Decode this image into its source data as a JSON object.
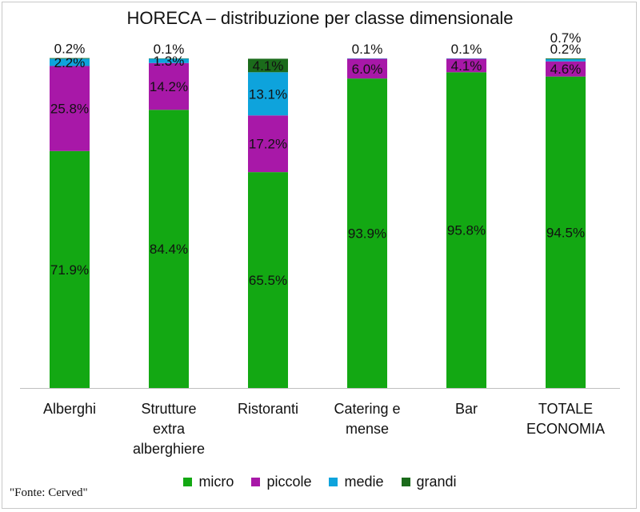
{
  "chart_data": {
    "type": "bar",
    "stacked": true,
    "title": "HORECA – distribuzione per classe dimensionale",
    "categories": [
      [
        "Alberghi"
      ],
      [
        "Strutture",
        "extra",
        "alberghiere"
      ],
      [
        "Ristoranti"
      ],
      [
        "Catering e",
        "mense"
      ],
      [
        "Bar"
      ],
      [
        "TOTALE",
        "ECONOMIA"
      ]
    ],
    "series": [
      {
        "name": "micro",
        "color": "#13A813",
        "values": [
          71.9,
          84.4,
          65.5,
          93.9,
          95.8,
          94.5
        ],
        "labels": [
          "71.9%",
          "84.4%",
          "65.5%",
          "93.9%",
          "95.8%",
          "94.5%"
        ]
      },
      {
        "name": "piccole",
        "color": "#A818A8",
        "values": [
          25.8,
          14.2,
          17.2,
          6.0,
          4.1,
          4.6
        ],
        "labels": [
          "25.8%",
          "14.2%",
          "17.2%",
          "6.0%",
          "4.1%",
          "4.6%"
        ]
      },
      {
        "name": "medie",
        "color": "#0EA3DC",
        "values": [
          2.2,
          1.3,
          13.1,
          0.1,
          0.1,
          0.7
        ],
        "labels": [
          "2.2%",
          "1.3%",
          "13.1%",
          "0.1%",
          "0.1%",
          "0.7%"
        ]
      },
      {
        "name": "grandi",
        "color": "#1B6B1B",
        "values": [
          0.2,
          0.1,
          4.1,
          0.0,
          0.0,
          0.2
        ],
        "labels": [
          "0.2%",
          "0.1%",
          "4.1%",
          "",
          "",
          "0.2%"
        ]
      }
    ],
    "ylim": [
      0,
      100
    ],
    "grid": false,
    "legend": "bottom"
  },
  "source": "\"Fonte: Cerved\""
}
